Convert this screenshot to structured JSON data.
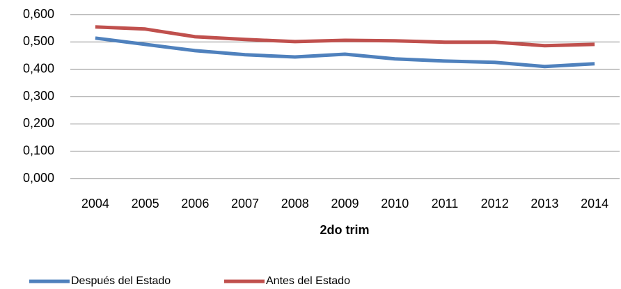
{
  "chart_data": {
    "type": "line",
    "x_label": "2do trim",
    "categories": [
      "2004",
      "2005",
      "2006",
      "2007",
      "2008",
      "2009",
      "2010",
      "2011",
      "2012",
      "2013",
      "2014"
    ],
    "series": [
      {
        "name": "Después del Estado",
        "color": "#4f81bd",
        "values": [
          0.514,
          0.491,
          0.468,
          0.453,
          0.445,
          0.455,
          0.438,
          0.43,
          0.425,
          0.41,
          0.42
        ]
      },
      {
        "name": "Antes del Estado",
        "color": "#c0504d",
        "values": [
          0.555,
          0.547,
          0.519,
          0.509,
          0.501,
          0.506,
          0.504,
          0.499,
          0.499,
          0.486,
          0.491
        ]
      }
    ],
    "ylim": [
      0,
      0.6
    ],
    "yticks": [
      {
        "value": 0,
        "label": "0,000"
      },
      {
        "value": 0.1,
        "label": "0,100"
      },
      {
        "value": 0.2,
        "label": "0,200"
      },
      {
        "value": 0.3,
        "label": "0,300"
      },
      {
        "value": 0.4,
        "label": "0,400"
      },
      {
        "value": 0.5,
        "label": "0,500"
      },
      {
        "value": 0.6,
        "label": "0,600"
      }
    ],
    "grid": true,
    "legend": "bottom"
  }
}
